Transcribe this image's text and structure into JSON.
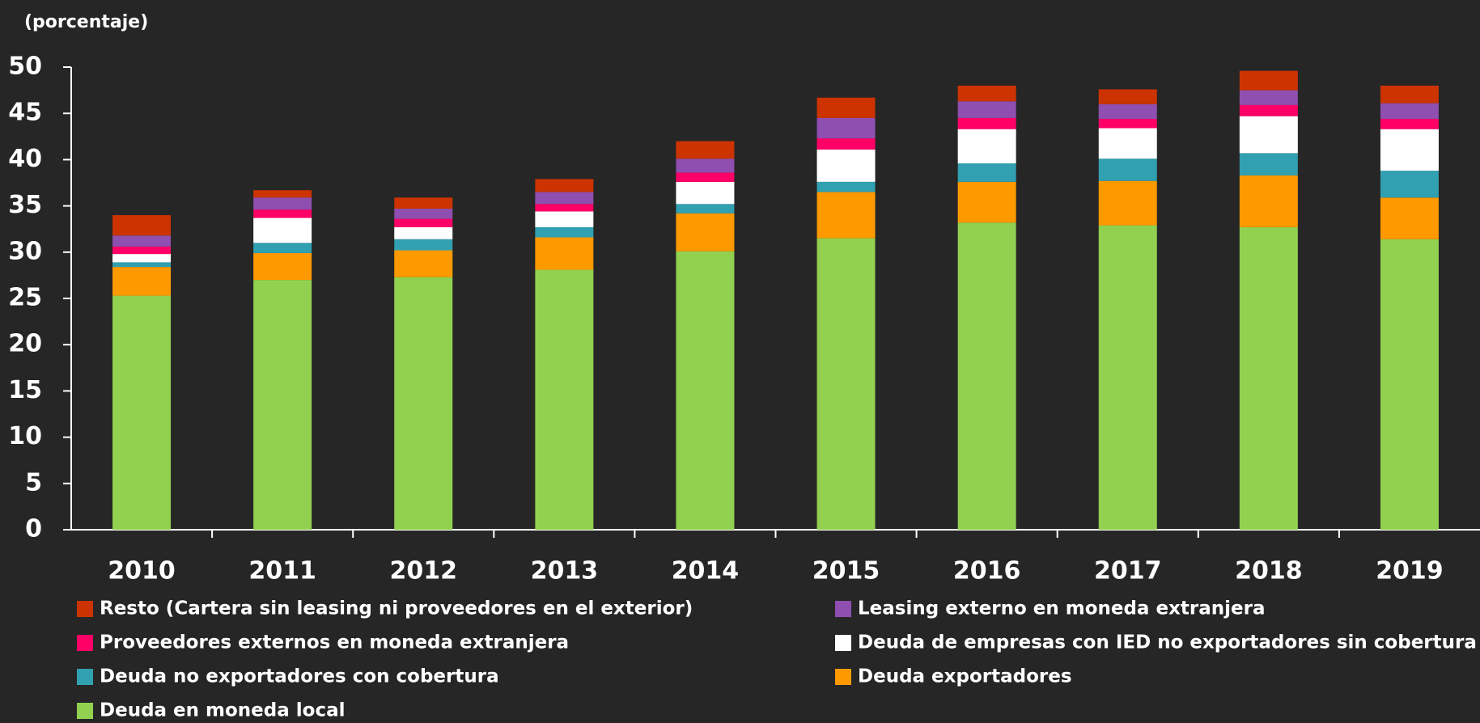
{
  "chart_data": {
    "type": "stacked_bar",
    "y_label": "(porcentaje)",
    "categories": [
      "2010",
      "2011",
      "2012",
      "2013",
      "2014",
      "2015",
      "2016",
      "2017",
      "2018",
      "2019"
    ],
    "ylim": [
      0,
      50
    ],
    "yticks": [
      0,
      5,
      10,
      15,
      20,
      25,
      30,
      35,
      40,
      45,
      50
    ],
    "series": [
      {
        "name": "Deuda en moneda local",
        "color": "#92d050",
        "values": [
          25.3,
          27.0,
          27.3,
          28.1,
          30.1,
          31.5,
          33.2,
          32.9,
          32.7,
          31.4
        ]
      },
      {
        "name": "Deuda exportadores",
        "color": "#ff9900",
        "values": [
          3.1,
          2.9,
          2.9,
          3.5,
          4.1,
          5.0,
          4.4,
          4.8,
          5.6,
          4.5
        ]
      },
      {
        "name": "Deuda no exportadores con cobertura",
        "color": "#31a0b0",
        "values": [
          0.5,
          1.1,
          1.2,
          1.1,
          1.0,
          1.1,
          2.0,
          2.4,
          2.4,
          2.9
        ]
      },
      {
        "name": "Deuda de empresas con IED no exportadores sin cobertura",
        "color": "#ffffff",
        "values": [
          0.9,
          2.7,
          1.3,
          1.7,
          2.4,
          3.5,
          3.7,
          3.3,
          4.0,
          4.5
        ]
      },
      {
        "name": "Proveedores externos en moneda extranjera",
        "color": "#ff0066",
        "values": [
          0.8,
          0.9,
          0.9,
          0.8,
          1.0,
          1.2,
          1.2,
          1.0,
          1.2,
          1.1
        ]
      },
      {
        "name": "Leasing externo en moneda extranjera",
        "color": "#8e4fb0",
        "values": [
          1.2,
          1.3,
          1.1,
          1.3,
          1.5,
          2.2,
          1.8,
          1.6,
          1.6,
          1.7
        ]
      },
      {
        "name": "Resto (Cartera sin leasing ni proveedores en el exterior)",
        "color": "#cc3300",
        "values": [
          2.2,
          0.8,
          1.2,
          1.4,
          1.9,
          2.2,
          1.7,
          1.6,
          2.1,
          1.9
        ]
      }
    ]
  }
}
